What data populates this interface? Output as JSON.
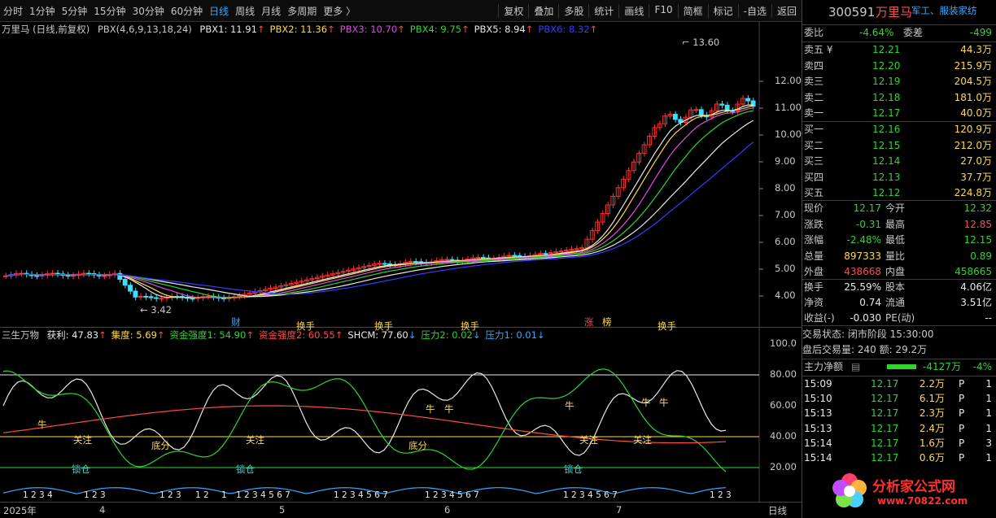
{
  "toolbar": {
    "periods": [
      "分时",
      "1分钟",
      "5分钟",
      "15分钟",
      "30分钟",
      "60分钟",
      "日线",
      "周线",
      "月线",
      "多周期",
      "更多 〉"
    ],
    "active": "日线",
    "buttons": [
      "复权",
      "叠加",
      "多股",
      "统计",
      "画线",
      "F10",
      "简框",
      "标记",
      "-自选",
      "返回"
    ]
  },
  "stock": {
    "code": "300591",
    "name": "万里马",
    "sector": "军工、服装家纺"
  },
  "main": {
    "title": "万里马 (日线,前复权)",
    "indicator": "PBX(4,6,9,13,18,24)",
    "pbx": [
      {
        "label": "PBX1: 11.91",
        "color": "#e8e8e8"
      },
      {
        "label": "PBX2: 11.36",
        "color": "#ffd94a"
      },
      {
        "label": "PBX3: 10.70",
        "color": "#e04ae0"
      },
      {
        "label": "PBX4: 9.75",
        "color": "#2ed52e"
      },
      {
        "label": "PBX5: 8.94",
        "color": "#e8e8e8"
      },
      {
        "label": "PBX6: 8.32",
        "color": "#3a3aff"
      }
    ],
    "y_ticks": [
      "12.00",
      "11.00",
      "10.00",
      "9.00",
      "8.00",
      "7.00",
      "6.00",
      "5.00",
      "4.00"
    ],
    "high_label": "13.60",
    "low_label": "3.42",
    "markers": {
      "cai": "财",
      "zhang": "涨",
      "bang": "榜"
    }
  },
  "sub": {
    "name": "三生万物",
    "items": [
      {
        "label": "获利: 47.83",
        "color": "#e8e8e8"
      },
      {
        "label": "集度: 5.69",
        "color": "#ffd94a"
      },
      {
        "label": "资金强度1: 54.90",
        "color": "#2ed52e"
      },
      {
        "label": "资金强度2: 60.55",
        "color": "#ff4a4a"
      },
      {
        "label": "SHCM: 77.60",
        "color": "#e8e8e8"
      },
      {
        "label": "压力2: 0.02",
        "color": "#2ed52e"
      },
      {
        "label": "压力1: 0.01",
        "color": "#36a9ff"
      }
    ],
    "y_ticks": [
      "100.0",
      "80.00",
      "60.00",
      "40.00",
      "20.00"
    ],
    "labels": {
      "niu": "牛",
      "guanzhu": "关注",
      "difen": "底分",
      "suocang": "锁仓",
      "huanshou": "换手"
    },
    "counts": [
      "1 2 3 4",
      "1 2 3",
      "1 2 3",
      "1 2",
      "1",
      "1 2 3 4 5 6 7",
      "1 2 3 4 5 6 7",
      "1 2 3 4 5 6 7",
      "1 2 3 4 5 6 7",
      "1 2 3"
    ]
  },
  "xaxis": {
    "labels": [
      "2025年",
      "4",
      "5",
      "6",
      "7"
    ],
    "period": "日线"
  },
  "panel": {
    "weibi": {
      "label": "委比",
      "value": "-4.64%",
      "label2": "委差",
      "value2": "-499"
    },
    "sells": [
      {
        "label": "卖五 ¥",
        "price": "12.21",
        "vol": "44.3万"
      },
      {
        "label": "卖四",
        "price": "12.20",
        "vol": "215.9万"
      },
      {
        "label": "卖三",
        "price": "12.19",
        "vol": "204.5万"
      },
      {
        "label": "卖二",
        "price": "12.18",
        "vol": "181.0万"
      },
      {
        "label": "卖一",
        "price": "12.17",
        "vol": "40.0万"
      }
    ],
    "buys": [
      {
        "label": "买一",
        "price": "12.16",
        "vol": "120.9万"
      },
      {
        "label": "买二",
        "price": "12.15",
        "vol": "212.0万"
      },
      {
        "label": "买三",
        "price": "12.14",
        "vol": "27.0万"
      },
      {
        "label": "买四",
        "price": "12.13",
        "vol": "37.7万"
      },
      {
        "label": "买五",
        "price": "12.12",
        "vol": "224.8万"
      }
    ],
    "quote": [
      {
        "l1": "现价",
        "v1": "12.17",
        "c1": "green",
        "l2": "今开",
        "v2": "12.32",
        "c2": "green"
      },
      {
        "l1": "涨跌",
        "v1": "-0.31",
        "c1": "green",
        "l2": "最高",
        "v2": "12.85",
        "c2": "red"
      },
      {
        "l1": "涨幅",
        "v1": "-2.48%",
        "c1": "green",
        "l2": "最低",
        "v2": "12.15",
        "c2": "green"
      },
      {
        "l1": "总量",
        "v1": "897333",
        "c1": "yellow",
        "l2": "量比",
        "v2": "0.89",
        "c2": "green"
      },
      {
        "l1": "外盘",
        "v1": "438668",
        "c1": "red",
        "l2": "内盘",
        "v2": "458665",
        "c2": "green"
      }
    ],
    "fin": [
      {
        "l1": "换手",
        "v1": "25.59%",
        "l2": "股本",
        "v2": "4.06亿"
      },
      {
        "l1": "净资",
        "v1": "0.74",
        "l2": "流通",
        "v2": "3.51亿"
      },
      {
        "l1": "收益(-)",
        "v1": "-0.030",
        "l2": "PE(动)",
        "v2": "--"
      }
    ],
    "status": "交易状态: 闭市阶段 15:30:00",
    "after": "盘后交易量: 240  额: 29.2万",
    "netflow": {
      "label": "主力净额",
      "value": "-4127万",
      "pct": "-4%"
    },
    "ticks": [
      {
        "time": "15:09",
        "price": "12.17",
        "vol": "2.2万",
        "flag": "P",
        "n": "1"
      },
      {
        "time": "15:10",
        "price": "12.17",
        "vol": "6.1万",
        "flag": "P",
        "n": "1"
      },
      {
        "time": "15:13",
        "price": "12.17",
        "vol": "2.3万",
        "flag": "P",
        "n": "1"
      },
      {
        "time": "15:13",
        "price": "12.17",
        "vol": "2.4万",
        "flag": "P",
        "n": "1"
      },
      {
        "time": "15:14",
        "price": "12.17",
        "vol": "1.6万",
        "flag": "P",
        "n": "3"
      },
      {
        "time": "15:14",
        "price": "12.17",
        "vol": "0.6万",
        "flag": "P",
        "n": "1"
      }
    ]
  },
  "watermark": {
    "text": "分析家公式网",
    "url": "www.70822.com"
  }
}
